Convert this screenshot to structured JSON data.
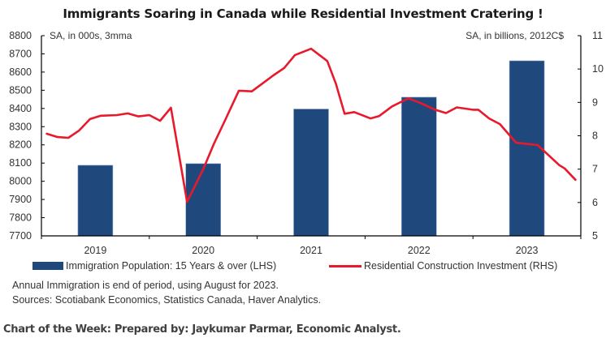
{
  "title": "Immigrants Soaring in Canada while Residential Investment Cratering !",
  "left_unit": "SA, in 000s, 3mma",
  "right_unit": "SA, in billions, 2012C$",
  "legend": {
    "bar_label": "Immigration Population: 15 Years & over (LHS)",
    "line_label": "Residential Construction Investment (RHS)"
  },
  "notes": [
    "Annual Immigration is end of period, using August for 2023.",
    "Sources: Scotiabank Economics, Statistics Canada, Haver Analytics."
  ],
  "footer": "Chart of the Week: Prepared by: Jaykumar Parmar, Economic Analyst.",
  "colors": {
    "bar": "#1f497d",
    "line": "#e8192c",
    "axis": "#000000"
  },
  "chart_data": {
    "type": "bar+line",
    "title": "Immigrants Soaring in Canada while Residential Investment Cratering !",
    "categories": [
      "2019",
      "2020",
      "2021",
      "2022",
      "2023"
    ],
    "left_axis": {
      "label": "SA, in 000s, 3mma",
      "ylim": [
        7700,
        8800
      ],
      "ticks": [
        7700,
        7800,
        7900,
        8000,
        8100,
        8200,
        8300,
        8400,
        8500,
        8600,
        8700,
        8800
      ]
    },
    "right_axis": {
      "label": "SA, in billions, 2012C$",
      "ylim": [
        5,
        11
      ],
      "ticks": [
        5,
        6,
        7,
        8,
        9,
        10,
        11
      ]
    },
    "series": [
      {
        "name": "Immigration Population: 15 Years & over (LHS)",
        "type": "bar",
        "axis": "left",
        "values": [
          8088,
          8097,
          8397,
          8462,
          8662
        ]
      },
      {
        "name": "Residential Construction Investment (RHS)",
        "type": "line",
        "axis": "right",
        "x": [
          2019.0,
          2019.1,
          2019.2,
          2019.3,
          2019.4,
          2019.5,
          2019.65,
          2019.75,
          2019.85,
          2019.95,
          2020.05,
          2020.15,
          2020.3,
          2020.45,
          2020.55,
          2020.65,
          2020.78,
          2020.9,
          2021.0,
          2021.1,
          2021.2,
          2021.3,
          2021.45,
          2021.6,
          2021.68,
          2021.76,
          2021.85,
          2022.0,
          2022.08,
          2022.2,
          2022.35,
          2022.45,
          2022.6,
          2022.7,
          2022.8,
          2022.95,
          2023.0,
          2023.1,
          2023.2,
          2023.35,
          2023.55,
          2023.75,
          2023.8,
          2023.9
        ],
        "values": [
          8.06,
          7.96,
          7.94,
          8.16,
          8.5,
          8.6,
          8.62,
          8.67,
          8.58,
          8.62,
          8.45,
          8.84,
          6.02,
          7.0,
          7.77,
          8.45,
          9.35,
          9.33,
          9.57,
          9.81,
          10.03,
          10.42,
          10.61,
          10.24,
          9.56,
          8.66,
          8.71,
          8.52,
          8.59,
          8.88,
          9.12,
          9.0,
          8.78,
          8.68,
          8.85,
          8.78,
          8.78,
          8.52,
          8.35,
          7.79,
          7.72,
          7.12,
          7.02,
          6.68
        ]
      }
    ],
    "grid": false,
    "legend_position": "bottom"
  }
}
